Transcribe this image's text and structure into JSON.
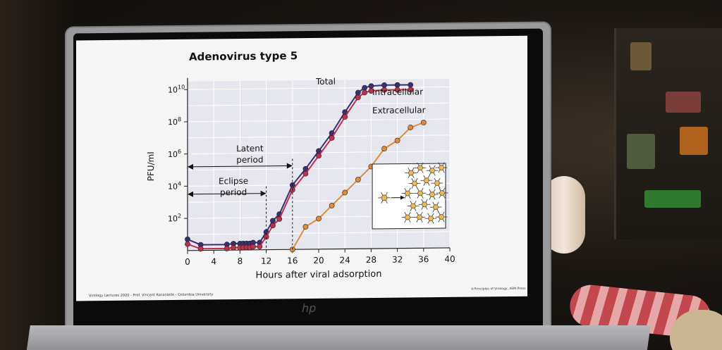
{
  "slide": {
    "title": "Adenovirus type 5",
    "footer_left": "Virology Lectures 2020 - Prof. Vincent Racaniello - Columbia University",
    "footer_right": "©Principles of Virology, ASM Press",
    "laptop_logo": "hp"
  },
  "chart_data": {
    "type": "line",
    "title": "Adenovirus type 5",
    "xlabel": "Hours after viral adsorption",
    "ylabel": "PFU/ml",
    "xlim": [
      0,
      40
    ],
    "ylim_log10": [
      0,
      10.5
    ],
    "x_ticks": [
      "0",
      "4",
      "8",
      "12",
      "16",
      "20",
      "24",
      "28",
      "32",
      "36",
      "40"
    ],
    "y_ticks": [
      {
        "base": "10",
        "exp": "2"
      },
      {
        "base": "10",
        "exp": "4"
      },
      {
        "base": "10",
        "exp": "6"
      },
      {
        "base": "10",
        "exp": "8"
      },
      {
        "base": "10",
        "exp": "10"
      }
    ],
    "scale": "log",
    "grid": true,
    "series": [
      {
        "name": "Total",
        "color": "#3b2e73",
        "x": [
          0,
          2,
          6,
          7,
          8,
          8.5,
          9,
          9.5,
          10,
          11,
          12,
          13,
          14,
          16,
          18,
          20,
          22,
          24,
          26,
          27,
          28,
          30,
          32,
          34
        ],
        "log10": [
          0.7,
          0.35,
          0.35,
          0.4,
          0.4,
          0.4,
          0.4,
          0.4,
          0.45,
          0.45,
          1.1,
          1.8,
          2.2,
          4.0,
          5.0,
          6.1,
          7.2,
          8.5,
          9.7,
          10.0,
          10.1,
          10.15,
          10.15,
          10.15
        ]
      },
      {
        "name": "Intracellular",
        "color": "#c0304a",
        "x": [
          0,
          2,
          6,
          7,
          8,
          8.5,
          9,
          9.5,
          10,
          11,
          12,
          13,
          14,
          16,
          18,
          20,
          22,
          24,
          26,
          27,
          28,
          30,
          32,
          34
        ],
        "log10": [
          0.4,
          0.1,
          0.1,
          0.15,
          0.15,
          0.15,
          0.15,
          0.15,
          0.2,
          0.2,
          0.8,
          1.5,
          1.9,
          3.7,
          4.7,
          5.8,
          6.9,
          8.2,
          9.4,
          9.7,
          9.8,
          9.85,
          9.85,
          9.85
        ]
      },
      {
        "name": "Extracellular",
        "color": "#e08a3c",
        "x": [
          16,
          18,
          20,
          22,
          24,
          26,
          28,
          30,
          32,
          34,
          36
        ],
        "log10": [
          0.0,
          1.4,
          1.9,
          2.7,
          3.5,
          4.3,
          5.1,
          6.2,
          6.7,
          7.5,
          7.8
        ]
      }
    ],
    "annotations": [
      {
        "text": "Total"
      },
      {
        "text": "Intracellular"
      },
      {
        "text": "Extracellular"
      },
      {
        "text_lines": [
          "Latent",
          "period"
        ],
        "span_hours": [
          0,
          16
        ]
      },
      {
        "text_lines": [
          "Eclipse",
          "period"
        ],
        "span_hours": [
          0,
          12
        ]
      }
    ],
    "legend": "inline labels"
  }
}
